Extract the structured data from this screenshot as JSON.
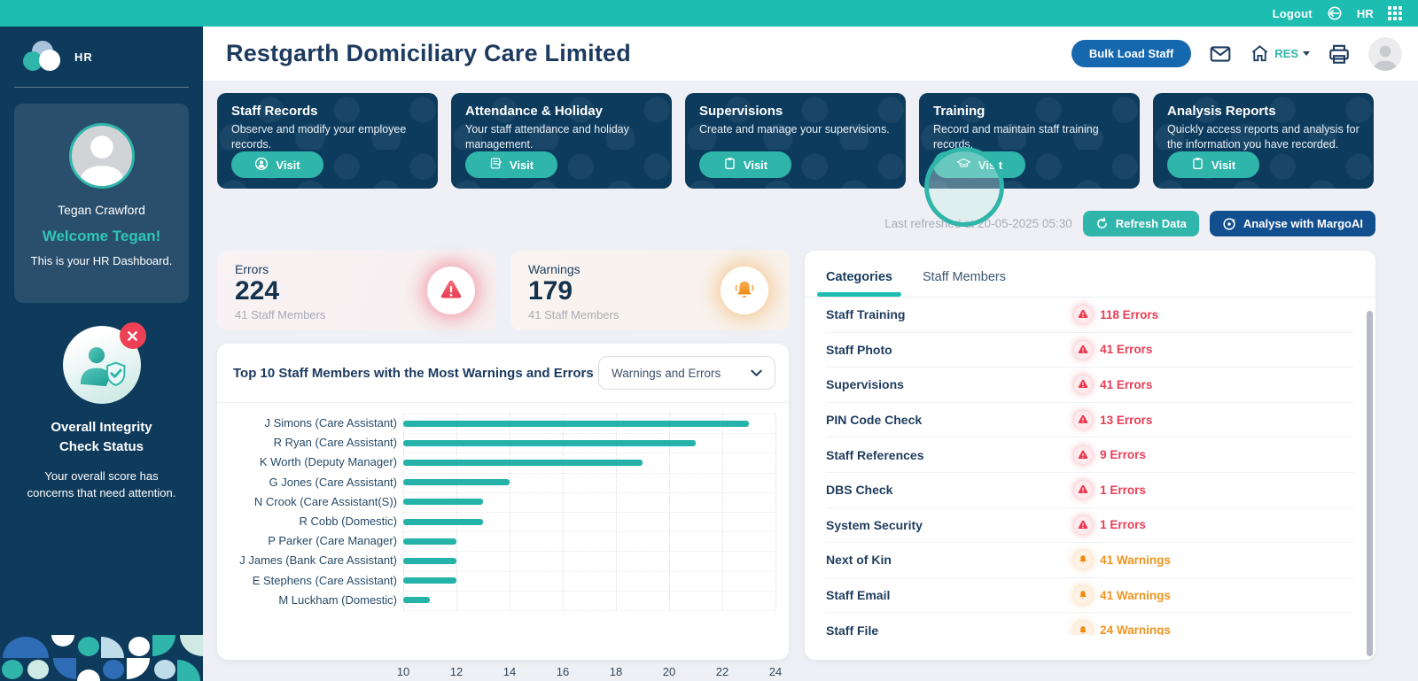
{
  "topbar": {
    "logout": "Logout",
    "hr_label": "HR"
  },
  "sidebar": {
    "logo_text": "HR",
    "user": {
      "name": "Tegan Crawford",
      "welcome": "Welcome Tegan!",
      "subtitle": "This is your HR Dashboard."
    },
    "integrity": {
      "title_line1": "Overall Integrity",
      "title_line2": "Check Status",
      "description_line1": "Your overall score has",
      "description_line2": "concerns that need attention."
    }
  },
  "header": {
    "title": "Restgarth Domiciliary Care Limited",
    "bulk_button": "Bulk Load Staff",
    "home_label": "RES"
  },
  "nav_cards": [
    {
      "title": "Staff Records",
      "description": "Observe and modify your employee records.",
      "button": "Visit",
      "icon": "person-circle-icon",
      "click_ring": false
    },
    {
      "title": "Attendance & Holiday",
      "description": "Your staff attendance and holiday management.",
      "button": "Visit",
      "icon": "note-icon",
      "click_ring": false
    },
    {
      "title": "Supervisions",
      "description": "Create and manage your supervisions.",
      "button": "Visit",
      "icon": "clipboard-icon",
      "click_ring": false
    },
    {
      "title": "Training",
      "description": "Record and maintain staff training records.",
      "button": "Vis t",
      "icon": "graduation-cap-icon",
      "click_ring": true
    },
    {
      "title": "Analysis Reports",
      "description": "Quickly access reports and analysis for the information you have recorded.",
      "button": "Visit",
      "icon": "clipboard-icon",
      "click_ring": false
    }
  ],
  "refresh_bar": {
    "last_refreshed": "Last refreshed at 20-05-2025 05:30",
    "refresh_button": "Refresh Data",
    "analyse_button": "Analyse with MargoAI"
  },
  "stats": {
    "errors": {
      "label": "Errors",
      "value": "224",
      "sub": "41 Staff Members"
    },
    "warnings": {
      "label": "Warnings",
      "value": "179",
      "sub": "41 Staff Members"
    }
  },
  "chart": {
    "title": "Top 10 Staff Members with the Most Warnings and Errors",
    "filter_value": "Warnings and Errors"
  },
  "chart_data": {
    "type": "bar",
    "orientation": "horizontal",
    "title": "Top 10 Staff Members with the Most Warnings and Errors",
    "categories": [
      "J Simons (Care Assistant)",
      "R Ryan (Care Assistant)",
      "K Worth (Deputy Manager)",
      "G Jones (Care Assistant)",
      "N Crook (Care Assistant(S))",
      "R Cobb (Domestic)",
      "P Parker (Care Manager)",
      "J James (Bank Care Assistant)",
      "E Stephens (Care Assistant)",
      "M Luckham (Domestic)"
    ],
    "values": [
      23,
      21,
      19,
      14,
      13,
      13,
      12,
      12,
      12,
      11
    ],
    "xlim": [
      10,
      24
    ],
    "xticks": [
      10,
      12,
      14,
      16,
      18,
      20,
      22,
      24
    ],
    "bar_color": "#25b2a8",
    "grid": "dotted",
    "legend": "none"
  },
  "panel": {
    "tabs": [
      {
        "label": "Categories",
        "active": true
      },
      {
        "label": "Staff Members",
        "active": false
      }
    ],
    "rows": [
      {
        "name": "Staff Training",
        "label": "118 Errors",
        "count": 118,
        "kind": "error"
      },
      {
        "name": "Staff Photo",
        "label": "41 Errors",
        "count": 41,
        "kind": "error"
      },
      {
        "name": "Supervisions",
        "label": "41 Errors",
        "count": 41,
        "kind": "error"
      },
      {
        "name": "PIN Code Check",
        "label": "13 Errors",
        "count": 13,
        "kind": "error"
      },
      {
        "name": "Staff References",
        "label": "9 Errors",
        "count": 9,
        "kind": "error"
      },
      {
        "name": "DBS Check",
        "label": "1 Errors",
        "count": 1,
        "kind": "error"
      },
      {
        "name": "System Security",
        "label": "1 Errors",
        "count": 1,
        "kind": "error"
      },
      {
        "name": "Next of Kin",
        "label": "41 Warnings",
        "count": 41,
        "kind": "warning"
      },
      {
        "name": "Staff Email",
        "label": "41 Warnings",
        "count": 41,
        "kind": "warning"
      },
      {
        "name": "Staff File",
        "label": "24 Warnings",
        "count": 24,
        "kind": "warning"
      }
    ]
  },
  "colors": {
    "accent_teal": "#1dbdb1",
    "teal_button": "#2fb5aa",
    "sidebar_navy": "#0e3a5c",
    "card_navy": "#0d3b5e",
    "blue_button": "#1567ae",
    "dark_blue_button": "#124f8e",
    "error_red": "#e83d55",
    "warning_orange": "#f0941d",
    "heading_navy": "#1d3a5f"
  }
}
